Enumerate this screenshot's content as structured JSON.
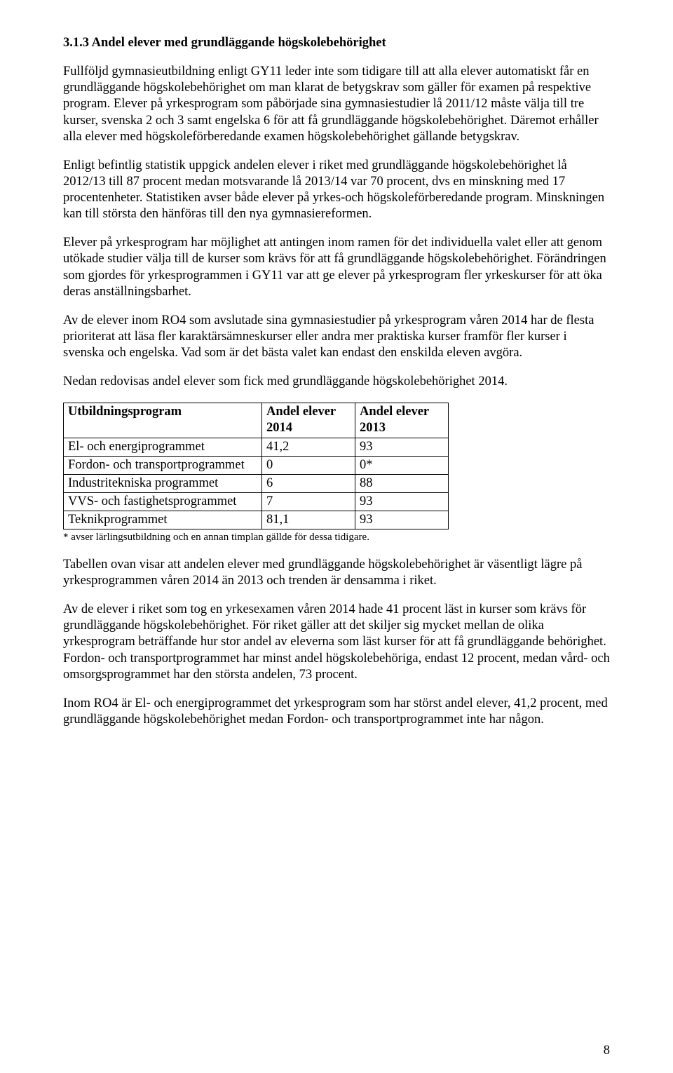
{
  "heading": "3.1.3 Andel elever med grundläggande högskolebehörighet",
  "para1": "Fullföljd gymnasieutbildning enligt GY11 leder inte som tidigare till att alla elever automatiskt får en grundläggande högskolebehörighet om man klarat de betygskrav som gäller för examen på respektive program. Elever på yrkesprogram som påbörjade sina gymnasiestudier lå 2011/12 måste välja till tre kurser, svenska 2 och 3 samt engelska 6 för att få grundläggande högskolebehörighet. Däremot erhåller alla elever med högskoleförberedande examen högskolebehörighet gällande betygskrav.",
  "para2": "Enligt befintlig statistik uppgick andelen elever i riket med grundläggande högskolebehörighet lå 2012/13 till 87 procent medan motsvarande lå 2013/14 var 70 procent, dvs en minskning med 17 procentenheter. Statistiken avser både elever på yrkes-och högskoleförberedande program. Minskningen kan till största den hänföras till den nya gymnasiereformen.",
  "para3": "Elever på yrkesprogram har möjlighet att antingen inom ramen för det individuella valet eller att genom utökade studier välja till de kurser som krävs för att få grundläggande högskolebehörighet. Förändringen som gjordes för yrkesprogrammen i GY11 var att ge elever på yrkesprogram fler yrkeskurser för att öka deras anställningsbarhet.",
  "para4": "Av de elever inom RO4 som avslutade sina gymnasiestudier på yrkesprogram våren 2014 har de flesta prioriterat att läsa fler karaktärsämneskurser eller andra mer praktiska kurser framför fler kurser i svenska och engelska. Vad som är det bästa valet kan endast den enskilda eleven avgöra.",
  "para5": "Nedan redovisas andel elever som fick med grundläggande högskolebehörighet 2014.",
  "table": {
    "columns": [
      "Utbildningsprogram",
      "Andel elever 2014",
      "Andel elever 2013"
    ],
    "rows": [
      [
        "El- och energiprogrammet",
        "41,2",
        "93"
      ],
      [
        "Fordon- och transportprogrammet",
        "0",
        " 0*"
      ],
      [
        "Industritekniska programmet",
        "6",
        "88"
      ],
      [
        "VVS- och fastighetsprogrammet",
        "7",
        "93"
      ],
      [
        "Teknikprogrammet",
        "81,1",
        "93"
      ]
    ]
  },
  "footnote": "* avser lärlingsutbildning och en annan timplan gällde för dessa tidigare.",
  "para6": "Tabellen ovan visar att andelen elever med grundläggande högskolebehörighet är väsentligt lägre på yrkesprogrammen våren 2014 än 2013 och trenden är densamma i riket.",
  "para7": "Av de elever i riket som tog en yrkesexamen våren 2014 hade 41 procent läst in kurser som krävs för grundläggande högskolebehörighet. För riket gäller att det skiljer sig mycket mellan de olika yrkesprogram beträffande hur stor andel av eleverna som läst kurser för att få grundläggande behörighet. Fordon- och transportprogrammet har minst andel högskolebehöriga, endast 12 procent, medan vård- och omsorgsprogrammet har den största andelen, 73 procent.",
  "para8": "Inom RO4 är El- och energiprogrammet det yrkesprogram som har störst andel elever, 41,2 procent, med grundläggande högskolebehörighet medan Fordon- och transportprogrammet inte har någon.",
  "page_number": "8"
}
